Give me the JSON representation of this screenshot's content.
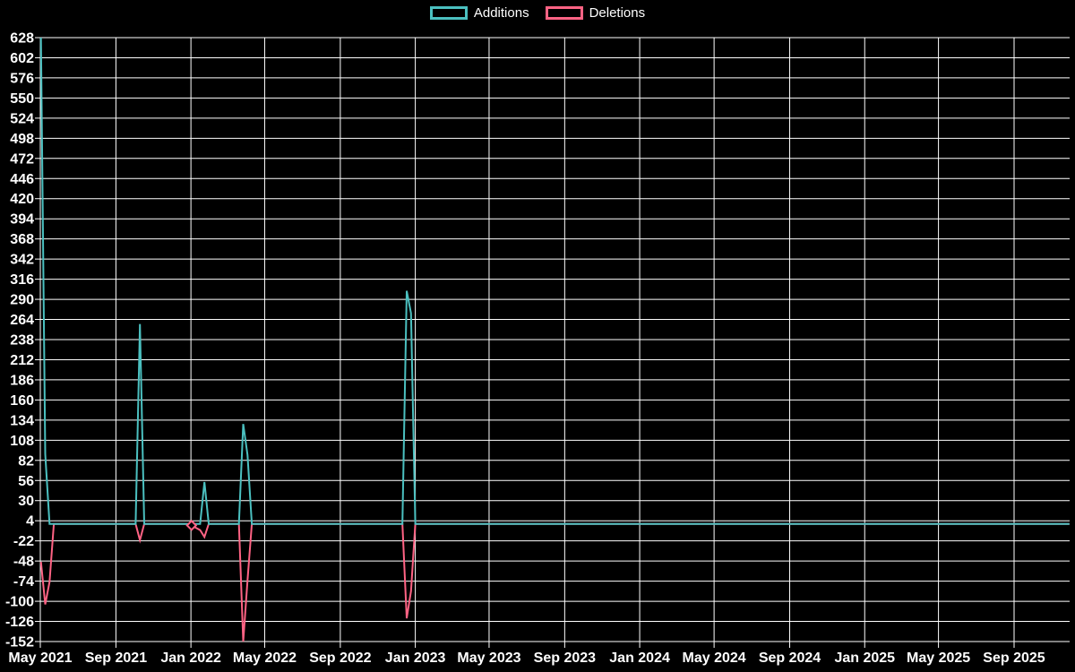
{
  "chart_data": {
    "type": "line",
    "title": "",
    "background_color": "#000000",
    "grid_color": "#ffffff",
    "text_color": "#ffffff",
    "grid": true,
    "legend_position": "top-center",
    "ylim": [
      -152,
      628
    ],
    "y_ticks": [
      628,
      602,
      576,
      550,
      524,
      498,
      472,
      446,
      420,
      394,
      368,
      342,
      316,
      290,
      264,
      238,
      212,
      186,
      160,
      134,
      108,
      82,
      56,
      30,
      4,
      -22,
      -48,
      -74,
      -100,
      -126,
      -152
    ],
    "x_ticks": [
      {
        "label": "May 2021",
        "date": "2021-05-01"
      },
      {
        "label": "Sep 2021",
        "date": "2021-09-01"
      },
      {
        "label": "Jan 2022",
        "date": "2022-01-01"
      },
      {
        "label": "May 2022",
        "date": "2022-05-01"
      },
      {
        "label": "Sep 2022",
        "date": "2022-09-01"
      },
      {
        "label": "Jan 2023",
        "date": "2023-01-01"
      },
      {
        "label": "May 2023",
        "date": "2023-05-01"
      },
      {
        "label": "Sep 2023",
        "date": "2023-09-01"
      },
      {
        "label": "Jan 2024",
        "date": "2024-01-01"
      },
      {
        "label": "May 2024",
        "date": "2024-05-01"
      },
      {
        "label": "Sep 2024",
        "date": "2024-09-01"
      },
      {
        "label": "Jan 2025",
        "date": "2025-01-01"
      },
      {
        "label": "May 2025",
        "date": "2025-05-01"
      },
      {
        "label": "Sep 2025",
        "date": "2025-09-01"
      }
    ],
    "series": [
      {
        "name": "Additions",
        "color": "#4bc0c0",
        "points": [
          [
            "2021-05-02",
            628
          ],
          [
            "2021-05-09",
            90
          ],
          [
            "2021-05-16",
            0
          ],
          [
            "2021-10-03",
            0
          ],
          [
            "2021-10-10",
            258
          ],
          [
            "2021-10-17",
            0
          ],
          [
            "2022-01-16",
            0
          ],
          [
            "2022-01-23",
            54
          ],
          [
            "2022-01-30",
            0
          ],
          [
            "2022-03-20",
            0
          ],
          [
            "2022-03-27",
            129
          ],
          [
            "2022-04-03",
            89
          ],
          [
            "2022-04-10",
            0
          ],
          [
            "2022-12-11",
            0
          ],
          [
            "2022-12-18",
            301
          ],
          [
            "2022-12-25",
            272
          ],
          [
            "2023-01-01",
            0
          ],
          [
            "2025-11-30",
            0
          ]
        ]
      },
      {
        "name": "Deletions",
        "color": "#ff6384",
        "points": [
          [
            "2021-05-02",
            -49
          ],
          [
            "2021-05-09",
            -104
          ],
          [
            "2021-05-16",
            -75
          ],
          [
            "2021-05-23",
            0
          ],
          [
            "2021-10-03",
            0
          ],
          [
            "2021-10-10",
            -21
          ],
          [
            "2021-10-17",
            0
          ],
          [
            "2021-12-26",
            0
          ],
          [
            "2022-01-02",
            -2
          ],
          [
            "2022-01-16",
            -8
          ],
          [
            "2022-01-23",
            -17
          ],
          [
            "2022-01-30",
            0
          ],
          [
            "2022-03-20",
            0
          ],
          [
            "2022-03-27",
            -152
          ],
          [
            "2022-04-03",
            -73
          ],
          [
            "2022-04-10",
            0
          ],
          [
            "2022-12-11",
            0
          ],
          [
            "2022-12-18",
            -122
          ],
          [
            "2022-12-25",
            -87
          ],
          [
            "2023-01-01",
            0
          ],
          [
            "2025-11-30",
            0
          ]
        ]
      }
    ],
    "markers": [
      {
        "series": "Deletions",
        "shape": "diamond",
        "date": "2022-01-02",
        "value": -2
      }
    ]
  }
}
